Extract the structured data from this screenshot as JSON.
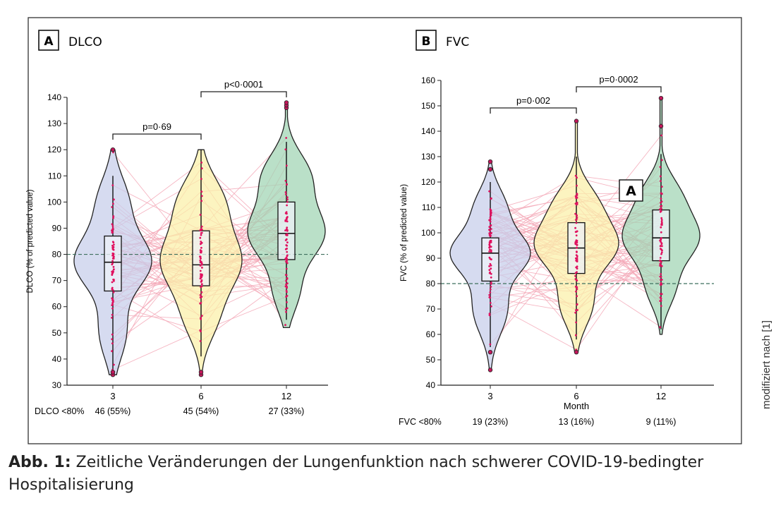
{
  "colors": {
    "violin_3": "#c6cdea",
    "violin_6": "#fbf0a8",
    "violin_12": "#9fd4b3",
    "trajectory": "#f4a9b8",
    "points": "#e0115f",
    "outlier_fill": "#c2185b",
    "reference": "#3f6f5e",
    "frame": "#333333"
  },
  "caption": {
    "label": "Abb. 1:",
    "text": "Zeitliche Veränderungen der Lungenfunktion nach schwerer COVID-19-bedingter Hospitalisierung"
  },
  "credit": "modifiziert nach [1]",
  "chart_data": [
    {
      "type": "violin",
      "panel_letter": "A",
      "title": "DLCO",
      "ylabel": "DLCO (% of predicted value)",
      "xlabel": "",
      "ylim": [
        30,
        140
      ],
      "yticks": [
        30,
        40,
        50,
        60,
        70,
        80,
        90,
        100,
        110,
        120,
        130,
        140
      ],
      "reference_line": 80,
      "categories": [
        "3",
        "6",
        "12"
      ],
      "distributions": [
        {
          "category": "3",
          "min": 34,
          "q1": 66,
          "median": 77,
          "q3": 87,
          "max": 120,
          "whisker_low": 34,
          "whisker_high": 110,
          "outliers": [
            34,
            35,
            120
          ]
        },
        {
          "category": "6",
          "min": 34,
          "q1": 68,
          "median": 76,
          "q3": 89,
          "max": 120,
          "whisker_low": 41,
          "whisker_high": 120,
          "outliers": [
            34,
            35
          ]
        },
        {
          "category": "12",
          "min": 52,
          "q1": 78,
          "median": 88,
          "q3": 100,
          "max": 138,
          "whisker_low": 55,
          "whisker_high": 123,
          "outliers": [
            136,
            137,
            138
          ]
        }
      ],
      "comparisons": [
        {
          "from": "3",
          "to": "6",
          "label": "p=0·69"
        },
        {
          "from": "6",
          "to": "12",
          "label": "p<0·0001"
        }
      ],
      "table": {
        "row_label": "DLCO <80%",
        "values": [
          "46 (55%)",
          "45 (54%)",
          "27 (33%)"
        ]
      }
    },
    {
      "type": "violin",
      "panel_letter": "B",
      "title": "FVC",
      "ylabel": "FVC (% of predicted value)",
      "xlabel": "Month",
      "ylim": [
        40,
        160
      ],
      "yticks": [
        40,
        50,
        60,
        70,
        80,
        90,
        100,
        110,
        120,
        130,
        140,
        150,
        160
      ],
      "reference_line": 80,
      "categories": [
        "3",
        "6",
        "12"
      ],
      "distributions": [
        {
          "category": "3",
          "min": 46,
          "q1": 81,
          "median": 92,
          "q3": 98,
          "max": 128,
          "whisker_low": 55,
          "whisker_high": 120,
          "outliers": [
            46,
            53,
            125,
            128
          ]
        },
        {
          "category": "6",
          "min": 53,
          "q1": 84,
          "median": 94,
          "q3": 104,
          "max": 144,
          "whisker_low": 58,
          "whisker_high": 130,
          "outliers": [
            53,
            144
          ]
        },
        {
          "category": "12",
          "min": 60,
          "q1": 89,
          "median": 98,
          "q3": 109,
          "max": 153,
          "whisker_low": 62,
          "whisker_high": 131,
          "outliers": [
            142,
            153
          ]
        }
      ],
      "comparisons": [
        {
          "from": "3",
          "to": "6",
          "label": "p=0·002"
        },
        {
          "from": "6",
          "to": "12",
          "label": "p=0·0002"
        }
      ],
      "table": {
        "row_label": "FVC <80%",
        "values": [
          "19 (23%)",
          "13 (16%)",
          "9 (11%)"
        ]
      },
      "annotation": "A"
    }
  ]
}
